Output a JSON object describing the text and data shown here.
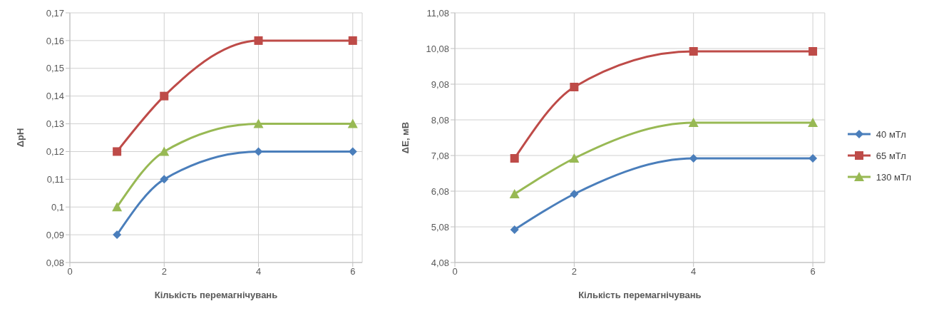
{
  "chart_data": [
    {
      "type": "line",
      "xlabel": "Кількість перемагнічувань",
      "ylabel": "ΔpH",
      "x": [
        1,
        2,
        4,
        6
      ],
      "xlim": [
        0,
        6.2
      ],
      "xticks": [
        0,
        2,
        4,
        6
      ],
      "ylim": [
        0.08,
        0.17
      ],
      "yticks": [
        {
          "value": 0.08,
          "label": "0,08"
        },
        {
          "value": 0.09,
          "label": "0,09"
        },
        {
          "value": 0.1,
          "label": "0,1"
        },
        {
          "value": 0.11,
          "label": "0,11"
        },
        {
          "value": 0.12,
          "label": "0,12"
        },
        {
          "value": 0.13,
          "label": "0,13"
        },
        {
          "value": 0.14,
          "label": "0,14"
        },
        {
          "value": 0.15,
          "label": "0,15"
        },
        {
          "value": 0.16,
          "label": "0,16"
        },
        {
          "value": 0.17,
          "label": "0,17"
        }
      ],
      "grid": true,
      "legend": false,
      "line_style": "solid",
      "series": [
        {
          "color": "#4a7ebb",
          "marker": "diamond",
          "values": [
            0.09,
            0.11,
            0.12,
            0.12
          ]
        },
        {
          "color": "#be4b48",
          "marker": "square",
          "values": [
            0.12,
            0.14,
            0.16,
            0.16
          ]
        },
        {
          "color": "#98b954",
          "marker": "triangle",
          "values": [
            0.1,
            0.12,
            0.13,
            0.13
          ]
        }
      ]
    },
    {
      "type": "line",
      "xlabel": "Кількість перемагнічувань",
      "ylabel": "ΔE, мВ",
      "x": [
        1,
        2,
        4,
        6
      ],
      "xlim": [
        0,
        6.2
      ],
      "xticks": [
        0,
        2,
        4,
        6
      ],
      "ylim": [
        4.08,
        11.08
      ],
      "yticks": [
        {
          "value": 4.08,
          "label": "4,08"
        },
        {
          "value": 5.08,
          "label": "5,08"
        },
        {
          "value": 6.08,
          "label": "6,08"
        },
        {
          "value": 7.08,
          "label": "7,08"
        },
        {
          "value": 8.08,
          "label": "8,08"
        },
        {
          "value": 9.08,
          "label": "9,08"
        },
        {
          "value": 10.08,
          "label": "10,08"
        },
        {
          "value": 11.08,
          "label": "11,08"
        }
      ],
      "grid": true,
      "legend": "right",
      "line_style": "solid",
      "series": [
        {
          "name": "40 мТл",
          "color": "#4a7ebb",
          "marker": "diamond",
          "values": [
            5,
            6,
            7,
            7
          ]
        },
        {
          "name": "65 мТл",
          "color": "#be4b48",
          "marker": "square",
          "values": [
            7,
            9,
            10,
            10
          ]
        },
        {
          "name": "130 мТл",
          "color": "#98b954",
          "marker": "triangle",
          "values": [
            6,
            7,
            8,
            8
          ]
        }
      ]
    }
  ]
}
